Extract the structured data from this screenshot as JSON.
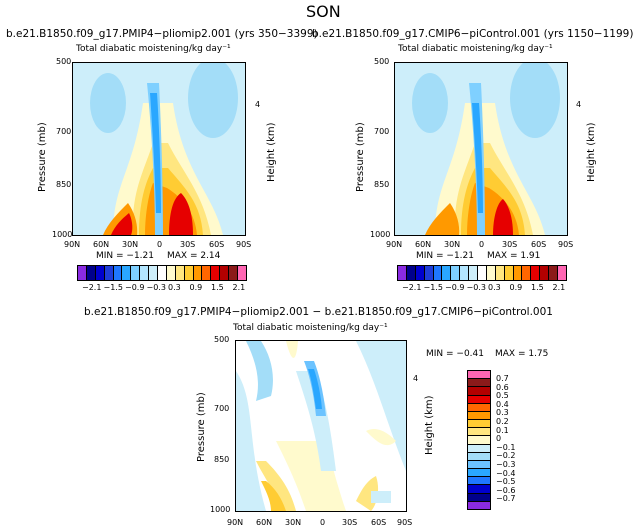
{
  "figure": {
    "main_title": "SON",
    "diff_title": "b.e21.B1850.f09_g17.PMIP4−pliomip2.001 − b.e21.B1850.f09_g17.CMIP6−piControl.001"
  },
  "panels": [
    {
      "case_title": "b.e21.B1850.f09_g17.PMIP4−pliomip2.001 (yrs 350−3399)",
      "var_title": "Total diabatic moistening/kg day⁻¹",
      "min_text": "MIN = −1.21",
      "max_text": "MAX = 2.14"
    },
    {
      "case_title": "b.e21.B1850.f09_g17.CMIP6−piControl.001 (yrs 1150−1199)",
      "var_title": "Total diabatic moistening/kg day⁻¹",
      "min_text": "MIN = −1.21",
      "max_text": "MAX = 1.91"
    },
    {
      "case_title": "",
      "var_title": "Total diabatic moistening/kg day⁻¹",
      "min_text": "MIN = −0.41",
      "max_text": "MAX = 1.75"
    }
  ],
  "axes": {
    "ylabel": "Pressure (mb)",
    "y2label": "Height (km)",
    "y_ticks": [
      "500",
      "700",
      "850",
      "1000"
    ],
    "y2_tick": "4",
    "x_ticks": [
      "90N",
      "60N",
      "30N",
      "0",
      "30S",
      "60S",
      "90S"
    ]
  },
  "colorbars": {
    "abs_labels": [
      "−2.1",
      "−1.5",
      "−0.9",
      "−0.3",
      "0.3",
      "0.9",
      "1.5",
      "2.1"
    ],
    "diff_labels": [
      "0.7",
      "0.6",
      "0.5",
      "0.4",
      "0.3",
      "0.2",
      "0.1",
      "0",
      "−0.1",
      "−0.2",
      "−0.3",
      "−0.4",
      "−0.5",
      "−0.6",
      "−0.7"
    ]
  },
  "colors": {
    "abs_scale": [
      "#8a2be2",
      "#00008b",
      "#0000cd",
      "#1e3cd8",
      "#1f77ff",
      "#2aa7ff",
      "#7fd0ff",
      "#b3e6ff",
      "#cdeefa",
      "#ffffff",
      "#fffacd",
      "#ffe680",
      "#ffcc33",
      "#ff9900",
      "#ff6600",
      "#e60000",
      "#b30000",
      "#8b1a1a",
      "#ff66b3"
    ],
    "diff_scale": [
      "#ff66b3",
      "#8b1a1a",
      "#b30000",
      "#e60000",
      "#ff6600",
      "#ff9900",
      "#ffcc33",
      "#ffe680",
      "#fffacd",
      "#cdeefa",
      "#a3ddf8",
      "#6cc3ff",
      "#2aa7ff",
      "#1f77ff",
      "#0000cd",
      "#00008b",
      "#8a2be2"
    ]
  },
  "chart_data": [
    {
      "type": "heatmap",
      "title": "b.e21.B1850.f09_g17.PMIP4−pliomip2.001 (yrs 350−3399)",
      "subtitle": "Total diabatic moistening/kg day⁻¹",
      "xlabel": "",
      "ylabel": "Pressure (mb)",
      "x_range": [
        "90N",
        "90S"
      ],
      "ylim": [
        1000,
        500
      ],
      "min": -1.21,
      "max": 2.14,
      "contour_levels": [
        -2.1,
        -1.8,
        -1.5,
        -1.2,
        -0.9,
        -0.6,
        -0.3,
        0,
        0.3,
        0.6,
        0.9,
        1.2,
        1.5,
        1.8,
        2.1
      ]
    },
    {
      "type": "heatmap",
      "title": "b.e21.B1850.f09_g17.CMIP6−piControl.001 (yrs 1150−1199)",
      "subtitle": "Total diabatic moistening/kg day⁻¹",
      "xlabel": "",
      "ylabel": "Pressure (mb)",
      "x_range": [
        "90N",
        "90S"
      ],
      "ylim": [
        1000,
        500
      ],
      "min": -1.21,
      "max": 1.91,
      "contour_levels": [
        -2.1,
        -1.8,
        -1.5,
        -1.2,
        -0.9,
        -0.6,
        -0.3,
        0,
        0.3,
        0.6,
        0.9,
        1.2,
        1.5,
        1.8,
        2.1
      ]
    },
    {
      "type": "heatmap",
      "title": "b.e21.B1850.f09_g17.PMIP4−pliomip2.001 − b.e21.B1850.f09_g17.CMIP6−piControl.001",
      "subtitle": "Total diabatic moistening/kg day⁻¹",
      "xlabel": "",
      "ylabel": "Pressure (mb)",
      "x_range": [
        "90N",
        "90S"
      ],
      "ylim": [
        1000,
        500
      ],
      "min": -0.41,
      "max": 1.75,
      "contour_levels": [
        -0.7,
        -0.6,
        -0.5,
        -0.4,
        -0.3,
        -0.2,
        -0.1,
        0,
        0.1,
        0.2,
        0.3,
        0.4,
        0.5,
        0.6,
        0.7
      ]
    }
  ]
}
